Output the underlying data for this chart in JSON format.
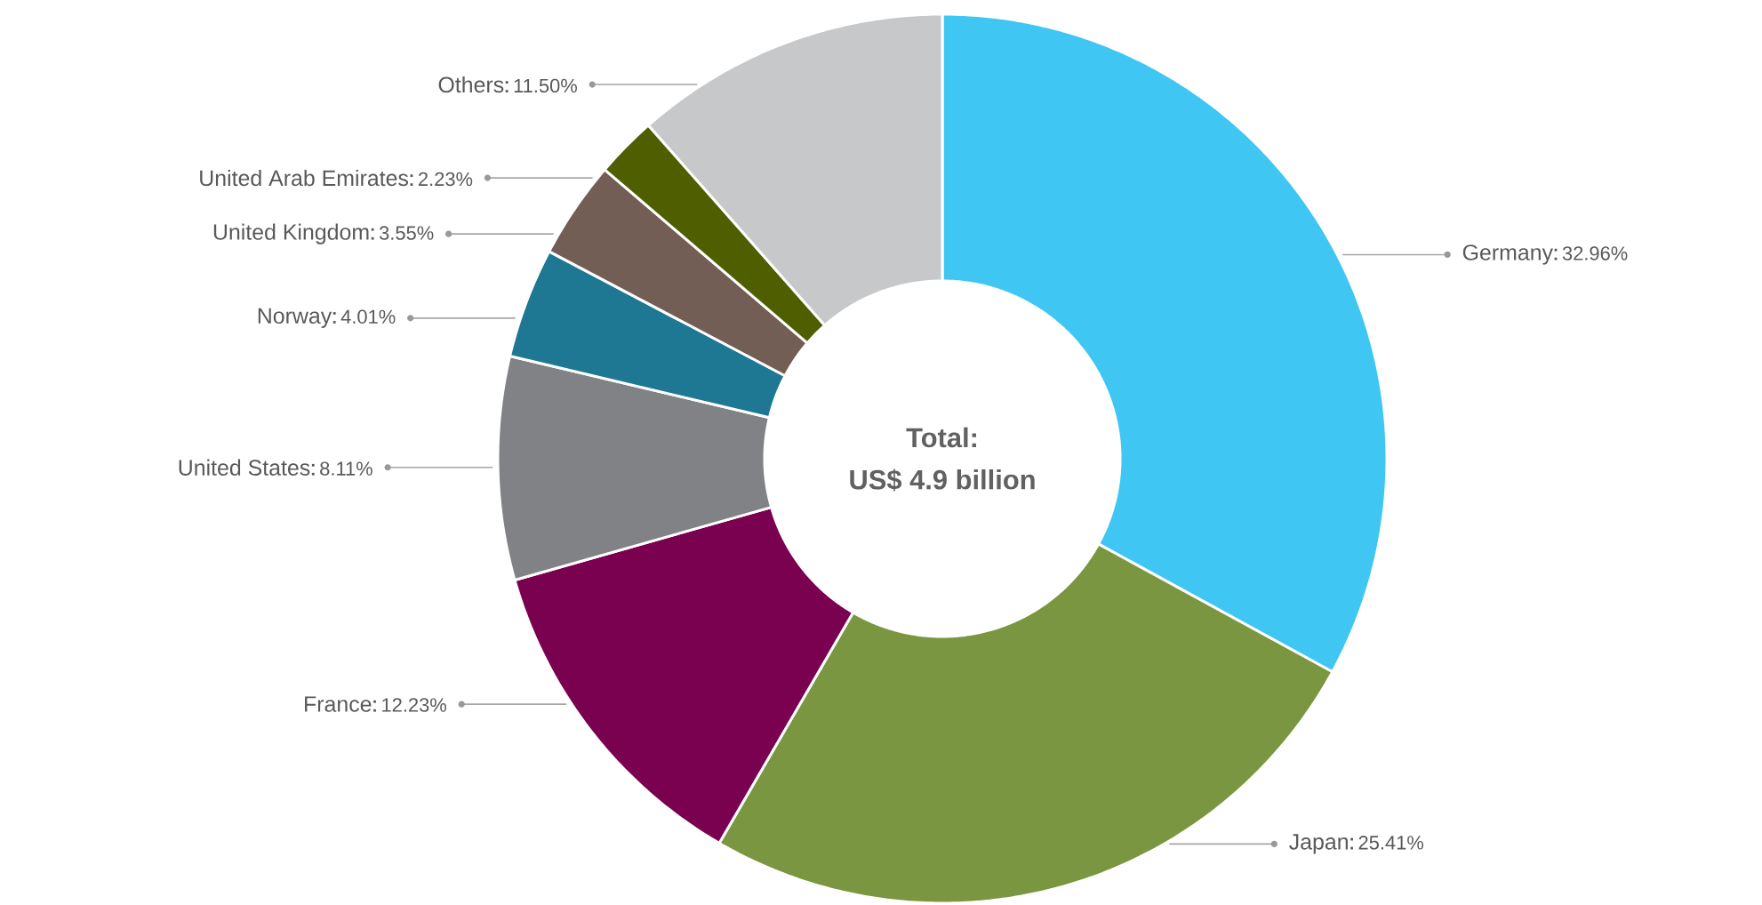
{
  "chart_data": {
    "type": "donut",
    "categories": [
      "Germany",
      "Japan",
      "France",
      "United States",
      "Norway",
      "United Kingdom",
      "United Arab Emirates",
      "Others"
    ],
    "values": [
      32.96,
      25.41,
      12.23,
      8.11,
      4.01,
      3.55,
      2.23,
      11.5
    ],
    "value_labels": [
      "32.96%",
      "25.41%",
      "12.23%",
      "8.11%",
      "4.01%",
      "3.55%",
      "2.23%",
      "11.50%"
    ],
    "colors": [
      "#40c6f2",
      "#7a9640",
      "#7a0050",
      "#808285",
      "#1e7894",
      "#735e55",
      "#4f5f00",
      "#c7c8ca"
    ],
    "annotations": [
      "Total:",
      "US$ 4.9 billion"
    ]
  }
}
